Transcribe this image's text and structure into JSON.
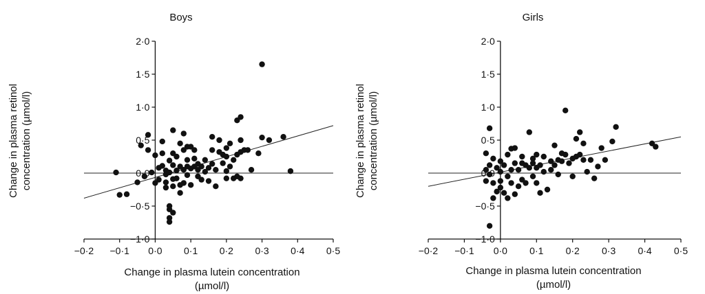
{
  "chart_data": [
    {
      "type": "scatter",
      "title": "Boys",
      "xlabel_line1": "Change in plasma lutein concentration",
      "xlabel_line2": "(µmol/l)",
      "ylabel_line1": "Change in plasma retinol",
      "ylabel_line2": "concentration (µmol/l)",
      "xlim": [
        -0.2,
        0.5
      ],
      "ylim": [
        -1.0,
        2.0
      ],
      "xticks": [
        -0.2,
        -0.1,
        0.0,
        0.1,
        0.2,
        0.3,
        0.4,
        0.5
      ],
      "xtick_labels": [
        "−0·2",
        "−0·1",
        "0·0",
        "0·1",
        "0·2",
        "0·3",
        "0·4",
        "0·5"
      ],
      "yticks": [
        -1.0,
        -0.5,
        0.0,
        0.5,
        1.0,
        1.5,
        2.0
      ],
      "ytick_labels": [
        "−1·0",
        "−0·5",
        "0·0",
        "0·5",
        "1·0",
        "1·5",
        "2·0"
      ],
      "reference_line_y": 0,
      "fit_line": [
        [
          -0.2,
          -0.38
        ],
        [
          0.5,
          0.72
        ]
      ],
      "points": [
        [
          -0.11,
          0.01
        ],
        [
          -0.1,
          -0.33
        ],
        [
          -0.08,
          -0.32
        ],
        [
          -0.05,
          -0.14
        ],
        [
          -0.04,
          0.42
        ],
        [
          -0.03,
          -0.05
        ],
        [
          -0.02,
          0.35
        ],
        [
          -0.02,
          0.58
        ],
        [
          -0.01,
          0.01
        ],
        [
          0.0,
          0.27
        ],
        [
          0.0,
          -0.15
        ],
        [
          0.01,
          0.08
        ],
        [
          0.01,
          -0.1
        ],
        [
          0.02,
          0.48
        ],
        [
          0.02,
          0.3
        ],
        [
          0.02,
          0.11
        ],
        [
          0.03,
          0.04
        ],
        [
          0.03,
          -0.02
        ],
        [
          0.03,
          -0.14
        ],
        [
          0.03,
          -0.22
        ],
        [
          0.04,
          0.01
        ],
        [
          0.04,
          0.19
        ],
        [
          0.04,
          -0.5
        ],
        [
          0.04,
          -0.55
        ],
        [
          0.04,
          -0.68
        ],
        [
          0.04,
          -0.74
        ],
        [
          0.05,
          0.12
        ],
        [
          0.05,
          0.65
        ],
        [
          0.05,
          0.3
        ],
        [
          0.05,
          -0.09
        ],
        [
          0.05,
          -0.2
        ],
        [
          0.05,
          -0.6
        ],
        [
          0.06,
          0.04
        ],
        [
          0.06,
          -0.08
        ],
        [
          0.06,
          0.25
        ],
        [
          0.07,
          0.1
        ],
        [
          0.07,
          -0.18
        ],
        [
          0.07,
          -0.3
        ],
        [
          0.07,
          0.45
        ],
        [
          0.08,
          0.05
        ],
        [
          0.08,
          0.35
        ],
        [
          0.08,
          0.6
        ],
        [
          0.08,
          -0.15
        ],
        [
          0.09,
          0.1
        ],
        [
          0.09,
          0.4
        ],
        [
          0.09,
          -0.03
        ],
        [
          0.09,
          0.2
        ],
        [
          0.1,
          0.07
        ],
        [
          0.1,
          0.4
        ],
        [
          0.1,
          -0.18
        ],
        [
          0.11,
          0.1
        ],
        [
          0.11,
          0.35
        ],
        [
          0.11,
          0.22
        ],
        [
          0.12,
          0.05
        ],
        [
          0.12,
          -0.05
        ],
        [
          0.12,
          0.14
        ],
        [
          0.13,
          -0.1
        ],
        [
          0.13,
          0.1
        ],
        [
          0.14,
          0.02
        ],
        [
          0.14,
          0.2
        ],
        [
          0.15,
          -0.12
        ],
        [
          0.15,
          0.08
        ],
        [
          0.16,
          0.55
        ],
        [
          0.16,
          0.14
        ],
        [
          0.16,
          0.35
        ],
        [
          0.17,
          -0.2
        ],
        [
          0.17,
          0.05
        ],
        [
          0.18,
          0.32
        ],
        [
          0.18,
          0.5
        ],
        [
          0.19,
          0.28
        ],
        [
          0.19,
          0.15
        ],
        [
          0.2,
          0.38
        ],
        [
          0.2,
          0.25
        ],
        [
          0.2,
          0.03
        ],
        [
          0.2,
          -0.08
        ],
        [
          0.21,
          0.45
        ],
        [
          0.21,
          0.1
        ],
        [
          0.22,
          -0.08
        ],
        [
          0.22,
          0.2
        ],
        [
          0.23,
          0.28
        ],
        [
          0.23,
          0.8
        ],
        [
          0.23,
          -0.05
        ],
        [
          0.24,
          0.85
        ],
        [
          0.24,
          0.32
        ],
        [
          0.24,
          0.5
        ],
        [
          0.24,
          -0.08
        ],
        [
          0.25,
          0.35
        ],
        [
          0.26,
          0.35
        ],
        [
          0.27,
          0.05
        ],
        [
          0.29,
          0.3
        ],
        [
          0.3,
          1.65
        ],
        [
          0.3,
          0.54
        ],
        [
          0.32,
          0.5
        ],
        [
          0.36,
          0.55
        ],
        [
          0.38,
          0.03
        ]
      ]
    },
    {
      "type": "scatter",
      "title": "Girls",
      "xlabel_line1": "Change in plasma lutein concentration",
      "xlabel_line2": "(µmol/l)",
      "ylabel_line1": "Change in plasma retinol",
      "ylabel_line2": "concentration (µmol/l)",
      "xlim": [
        -0.2,
        0.5
      ],
      "ylim": [
        -1.0,
        2.0
      ],
      "xticks": [
        -0.2,
        -0.1,
        0.0,
        0.1,
        0.2,
        0.3,
        0.4,
        0.5
      ],
      "xtick_labels": [
        "−0·2",
        "−0·1",
        "0·0",
        "0·1",
        "0·2",
        "0·3",
        "0·4",
        "0·5"
      ],
      "yticks": [
        -1.0,
        -0.5,
        0.0,
        0.5,
        1.0,
        1.5,
        2.0
      ],
      "ytick_labels": [
        "−1·0",
        "−0·5",
        "0·0",
        "0·5",
        "1·0",
        "1·5",
        "2·0"
      ],
      "reference_line_y": 0,
      "fit_line": [
        [
          -0.2,
          -0.2
        ],
        [
          0.5,
          0.55
        ]
      ],
      "points": [
        [
          -0.04,
          -0.12
        ],
        [
          -0.04,
          0.05
        ],
        [
          -0.04,
          0.3
        ],
        [
          -0.03,
          0.68
        ],
        [
          -0.03,
          0.12
        ],
        [
          -0.03,
          -0.02
        ],
        [
          -0.03,
          -0.8
        ],
        [
          -0.02,
          -0.15
        ],
        [
          -0.02,
          0.22
        ],
        [
          -0.02,
          -0.38
        ],
        [
          -0.01,
          0.08
        ],
        [
          -0.01,
          -0.28
        ],
        [
          0.0,
          0.02
        ],
        [
          0.0,
          0.18
        ],
        [
          0.0,
          -0.12
        ],
        [
          0.0,
          -0.22
        ],
        [
          0.01,
          0.12
        ],
        [
          0.01,
          -0.3
        ],
        [
          0.02,
          0.28
        ],
        [
          0.02,
          -0.05
        ],
        [
          0.02,
          -0.38
        ],
        [
          0.03,
          0.37
        ],
        [
          0.03,
          0.05
        ],
        [
          0.03,
          -0.15
        ],
        [
          0.04,
          0.38
        ],
        [
          0.04,
          0.15
        ],
        [
          0.04,
          -0.32
        ],
        [
          0.05,
          0.05
        ],
        [
          0.05,
          -0.2
        ],
        [
          0.06,
          0.15
        ],
        [
          0.06,
          -0.1
        ],
        [
          0.06,
          0.25
        ],
        [
          0.07,
          0.12
        ],
        [
          0.07,
          -0.15
        ],
        [
          0.08,
          0.62
        ],
        [
          0.08,
          0.08
        ],
        [
          0.09,
          0.15
        ],
        [
          0.09,
          -0.05
        ],
        [
          0.09,
          0.22
        ],
        [
          0.1,
          0.28
        ],
        [
          0.1,
          0.08
        ],
        [
          0.1,
          -0.15
        ],
        [
          0.11,
          0.12
        ],
        [
          0.11,
          -0.3
        ],
        [
          0.12,
          0.25
        ],
        [
          0.12,
          0.02
        ],
        [
          0.13,
          -0.25
        ],
        [
          0.14,
          0.18
        ],
        [
          0.14,
          0.05
        ],
        [
          0.15,
          0.42
        ],
        [
          0.15,
          0.12
        ],
        [
          0.16,
          0.2
        ],
        [
          0.16,
          -0.02
        ],
        [
          0.17,
          0.3
        ],
        [
          0.17,
          0.18
        ],
        [
          0.18,
          0.95
        ],
        [
          0.18,
          0.28
        ],
        [
          0.19,
          0.15
        ],
        [
          0.2,
          0.22
        ],
        [
          0.2,
          -0.05
        ],
        [
          0.21,
          0.52
        ],
        [
          0.21,
          0.25
        ],
        [
          0.22,
          0.62
        ],
        [
          0.22,
          0.28
        ],
        [
          0.23,
          0.2
        ],
        [
          0.23,
          0.45
        ],
        [
          0.24,
          0.02
        ],
        [
          0.25,
          0.2
        ],
        [
          0.26,
          -0.08
        ],
        [
          0.27,
          0.1
        ],
        [
          0.28,
          0.38
        ],
        [
          0.29,
          0.2
        ],
        [
          0.31,
          0.48
        ],
        [
          0.32,
          0.7
        ],
        [
          0.42,
          0.45
        ],
        [
          0.43,
          0.4
        ]
      ]
    }
  ]
}
